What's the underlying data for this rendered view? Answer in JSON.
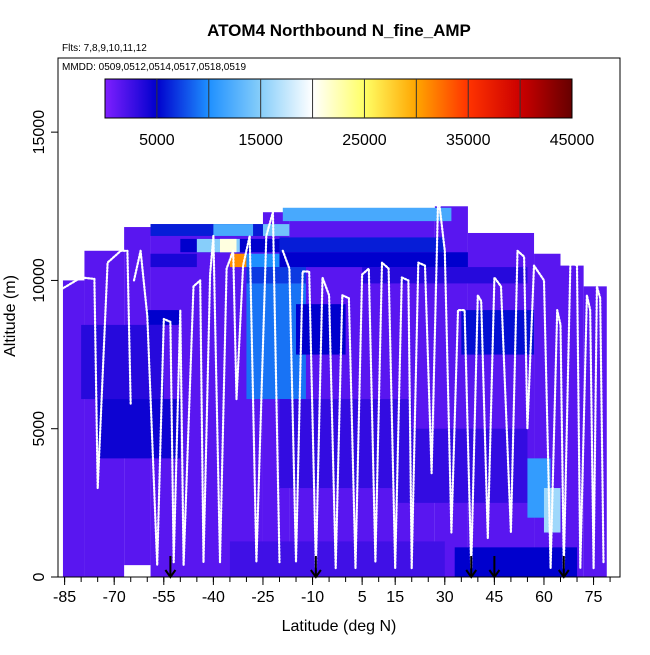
{
  "chart_data": {
    "type": "heatmap",
    "title": "ATOM4 Northbound N_fine_AMP",
    "flights_note": "Flts: 7,8,9,10,11,12",
    "dates_note": "MMDD: 0509,0512,0514,0517,0518,0519",
    "xlabel": "Latitude (deg N)",
    "ylabel": "Altitude (m)",
    "xlim": [
      -87,
      83
    ],
    "ylim": [
      0,
      17500
    ],
    "x_ticks": [
      -85,
      -70,
      -55,
      -40,
      -25,
      -10,
      5,
      15,
      30,
      45,
      60,
      75
    ],
    "x_tick_labels": [
      "-85",
      "-70",
      "-55",
      "-40",
      "-25",
      "-10",
      "5",
      "15",
      "30",
      "45",
      "60",
      "75"
    ],
    "x_minor_step": 5,
    "y_ticks": [
      0,
      5000,
      10000,
      15000
    ],
    "y_tick_labels": [
      "0",
      "5000",
      "10000",
      "15000"
    ],
    "colorbar": {
      "min": 0,
      "max": 45000,
      "ticks": [
        5000,
        15000,
        25000,
        35000,
        45000
      ],
      "tick_labels": [
        "5000",
        "15000",
        "25000",
        "35000",
        "45000"
      ],
      "stops": [
        "#7f1fff",
        "#0000cd",
        "#1e90ff",
        "#87cefa",
        "#ffffff",
        "#ffff66",
        "#ffa500",
        "#ff3300",
        "#cc0000",
        "#660000"
      ]
    },
    "latitude_markers": [
      -53,
      -9,
      38,
      45,
      66
    ],
    "background_value": 1500,
    "data_columns": [
      {
        "lat": [
          -85.5,
          -79
        ],
        "alt": [
          0,
          10000
        ],
        "v": 1500
      },
      {
        "lat": [
          -79,
          -67
        ],
        "alt": [
          0,
          11000
        ],
        "v": 1500
      },
      {
        "lat": [
          -67,
          -59
        ],
        "alt": [
          400,
          11800
        ],
        "v": 1500
      },
      {
        "lat": [
          -59,
          -25
        ],
        "alt": [
          0,
          11900
        ],
        "v": 1500
      },
      {
        "lat": [
          -25,
          -17
        ],
        "alt": [
          0,
          12300
        ],
        "v": 1500
      },
      {
        "lat": [
          -17,
          27
        ],
        "alt": [
          0,
          12400
        ],
        "v": 1500
      },
      {
        "lat": [
          27,
          37
        ],
        "alt": [
          0,
          12500
        ],
        "v": 1500
      },
      {
        "lat": [
          37,
          57
        ],
        "alt": [
          0,
          11600
        ],
        "v": 1500
      },
      {
        "lat": [
          57,
          65
        ],
        "alt": [
          0,
          10900
        ],
        "v": 1500
      },
      {
        "lat": [
          65,
          72
        ],
        "alt": [
          0,
          10500
        ],
        "v": 1500
      },
      {
        "lat": [
          72,
          79
        ],
        "alt": [
          0,
          9800
        ],
        "v": 1500
      }
    ],
    "data_cells": [
      {
        "lat": [
          -59,
          -17
        ],
        "alt": [
          11500,
          11900
        ],
        "v": 6000
      },
      {
        "lat": [
          -40,
          -28
        ],
        "alt": [
          11500,
          11900
        ],
        "v": 12000
      },
      {
        "lat": [
          -25,
          -17
        ],
        "alt": [
          11500,
          11900
        ],
        "v": 14000
      },
      {
        "lat": [
          -19,
          32
        ],
        "alt": [
          12000,
          12450
        ],
        "v": 12000
      },
      {
        "lat": [
          -50,
          -20
        ],
        "alt": [
          10950,
          11400
        ],
        "v": 5000
      },
      {
        "lat": [
          -45,
          -32
        ],
        "alt": [
          10950,
          11400
        ],
        "v": 15000
      },
      {
        "lat": [
          -38,
          -33
        ],
        "alt": [
          10950,
          11400
        ],
        "v": 21000
      },
      {
        "lat": [
          -20,
          30
        ],
        "alt": [
          10950,
          11450
        ],
        "v": 6000
      },
      {
        "lat": [
          -59,
          -45
        ],
        "alt": [
          10450,
          10900
        ],
        "v": 4000
      },
      {
        "lat": [
          -35,
          -30
        ],
        "alt": [
          10450,
          10900
        ],
        "v": 31000
      },
      {
        "lat": [
          -30,
          -20
        ],
        "alt": [
          10450,
          10900
        ],
        "v": 10000
      },
      {
        "lat": [
          -20,
          37
        ],
        "alt": [
          10450,
          10950
        ],
        "v": 5000
      },
      {
        "lat": [
          -30,
          -12
        ],
        "alt": [
          9900,
          10450
        ],
        "v": 7000
      },
      {
        "lat": [
          5,
          55
        ],
        "alt": [
          9900,
          10450
        ],
        "v": 3500
      },
      {
        "lat": [
          -30,
          -12
        ],
        "alt": [
          6000,
          9900
        ],
        "v": 9000
      },
      {
        "lat": [
          -15,
          0
        ],
        "alt": [
          7500,
          9200
        ],
        "v": 5000
      },
      {
        "lat": [
          35,
          57
        ],
        "alt": [
          7500,
          9000
        ],
        "v": 5500
      },
      {
        "lat": [
          -60,
          -50
        ],
        "alt": [
          8500,
          9000
        ],
        "v": 5000
      },
      {
        "lat": [
          -80,
          -55
        ],
        "alt": [
          6000,
          8500
        ],
        "v": 3500
      },
      {
        "lat": [
          -75,
          -50
        ],
        "alt": [
          4000,
          6000
        ],
        "v": 4500
      },
      {
        "lat": [
          -20,
          20
        ],
        "alt": [
          3000,
          6000
        ],
        "v": 3000
      },
      {
        "lat": [
          15,
          55
        ],
        "alt": [
          2500,
          5000
        ],
        "v": 3000
      },
      {
        "lat": [
          55,
          62
        ],
        "alt": [
          2000,
          4000
        ],
        "v": 11000
      },
      {
        "lat": [
          60,
          65
        ],
        "alt": [
          1500,
          3000
        ],
        "v": 16000
      },
      {
        "lat": [
          -35,
          30
        ],
        "alt": [
          0,
          1200
        ],
        "v": 2500
      },
      {
        "lat": [
          33,
          70
        ],
        "alt": [
          0,
          1000
        ],
        "v": 5000
      }
    ],
    "flight_profiles": [
      [
        [
          -86,
          9700
        ],
        [
          -80,
          10100
        ],
        [
          -76,
          10050
        ],
        [
          -75,
          3000
        ],
        [
          -72,
          10600
        ],
        [
          -68,
          11000
        ],
        [
          -66,
          11000
        ],
        [
          -65,
          5800
        ]
      ],
      [
        [
          -64,
          10000
        ],
        [
          -62,
          11000
        ],
        [
          -60,
          8800
        ],
        [
          -57,
          400
        ],
        [
          -55,
          8700
        ],
        [
          -53,
          8600
        ],
        [
          -52,
          500
        ],
        [
          -50,
          9000
        ],
        [
          -49,
          400
        ],
        [
          -46,
          9800
        ],
        [
          -44,
          10000
        ],
        [
          -43,
          500
        ],
        [
          -41,
          10200
        ],
        [
          -40,
          11500
        ],
        [
          -38,
          500
        ],
        [
          -36,
          10400
        ],
        [
          -34,
          11000
        ],
        [
          -33,
          6000
        ],
        [
          -31,
          10500
        ],
        [
          -29,
          11500
        ],
        [
          -27,
          500
        ],
        [
          -24,
          11500
        ],
        [
          -22,
          12300
        ],
        [
          -20,
          500
        ]
      ],
      [
        [
          -19,
          11000
        ],
        [
          -17,
          10400
        ],
        [
          -15,
          500
        ],
        [
          -13,
          10300
        ],
        [
          -11,
          10300
        ],
        [
          -9,
          300
        ],
        [
          -7,
          10100
        ],
        [
          -5,
          9500
        ],
        [
          -3,
          300
        ],
        [
          -1,
          9500
        ],
        [
          1,
          9400
        ],
        [
          3,
          300
        ],
        [
          5,
          10200
        ],
        [
          7,
          10400
        ],
        [
          9,
          500
        ],
        [
          11,
          10600
        ],
        [
          13,
          10400
        ],
        [
          15,
          300
        ],
        [
          17,
          10100
        ],
        [
          19,
          10000
        ],
        [
          20,
          300
        ],
        [
          22,
          10600
        ],
        [
          24,
          10500
        ],
        [
          26,
          3500
        ],
        [
          28,
          12900
        ],
        [
          30,
          11000
        ],
        [
          32,
          1500
        ],
        [
          34,
          9000
        ],
        [
          36,
          9000
        ],
        [
          38,
          300
        ],
        [
          40,
          9500
        ],
        [
          41,
          9300
        ],
        [
          43,
          1300
        ],
        [
          45,
          10100
        ],
        [
          47,
          9800
        ],
        [
          50,
          1500
        ],
        [
          52,
          11000
        ],
        [
          54,
          10800
        ],
        [
          55,
          5000
        ],
        [
          57,
          10500
        ],
        [
          60,
          10000
        ],
        [
          62,
          300
        ],
        [
          64,
          9000
        ],
        [
          65,
          8500
        ],
        [
          66,
          300
        ],
        [
          68,
          10600
        ],
        [
          70,
          10500
        ],
        [
          71,
          300
        ],
        [
          73,
          9500
        ],
        [
          74,
          9000
        ],
        [
          75,
          300
        ],
        [
          76,
          9800
        ],
        [
          77,
          9400
        ],
        [
          78,
          500
        ]
      ]
    ]
  }
}
